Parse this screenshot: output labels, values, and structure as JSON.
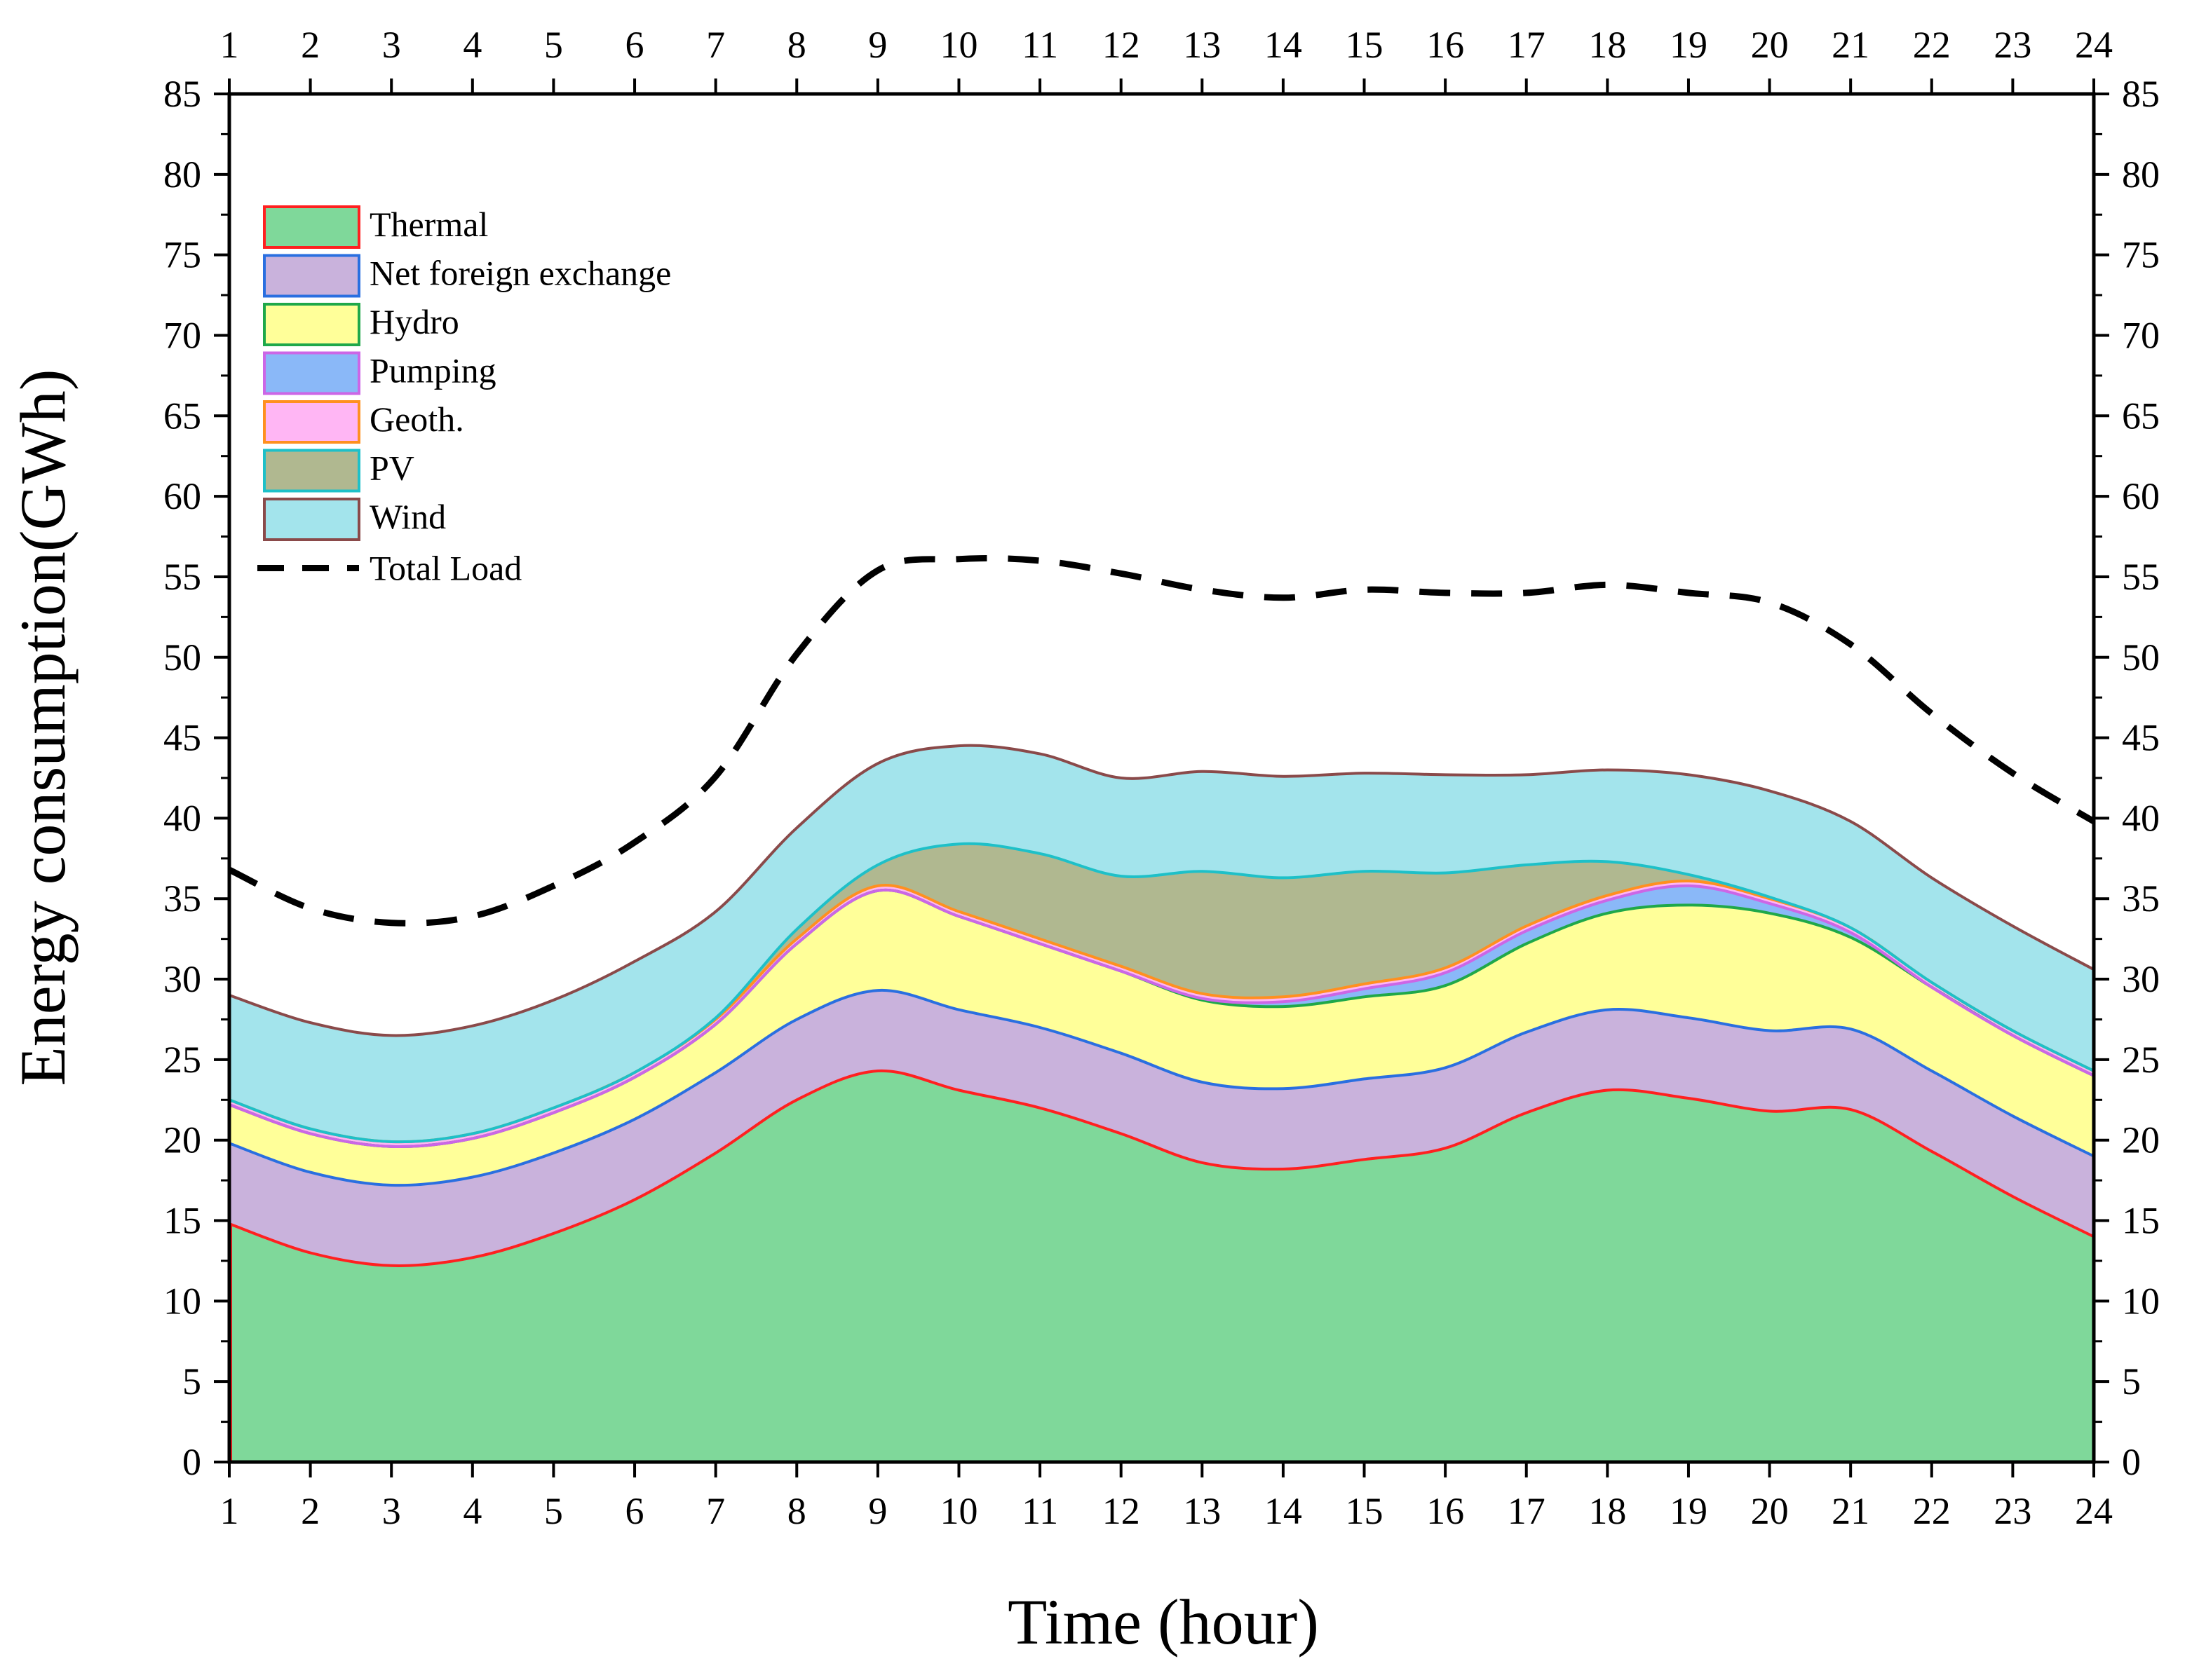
{
  "chart_data": {
    "type": "area",
    "stacked": true,
    "xlabel": "Time (hour)",
    "ylabel": "Energy consumption(GWh)",
    "x": [
      1,
      2,
      3,
      4,
      5,
      6,
      7,
      8,
      9,
      10,
      11,
      12,
      13,
      14,
      15,
      16,
      17,
      18,
      19,
      20,
      21,
      22,
      23,
      24
    ],
    "xlim": [
      1,
      24
    ],
    "ylim": [
      0,
      85
    ],
    "y_ticks": [
      0,
      5,
      10,
      15,
      20,
      25,
      30,
      35,
      40,
      45,
      50,
      55,
      60,
      65,
      70,
      75,
      80,
      85
    ],
    "x_ticks": [
      1,
      2,
      3,
      4,
      5,
      6,
      7,
      8,
      9,
      10,
      11,
      12,
      13,
      14,
      15,
      16,
      17,
      18,
      19,
      20,
      21,
      22,
      23,
      24
    ],
    "legend_position": "top-left",
    "series": [
      {
        "name": "Thermal",
        "fill": "#7fd89a",
        "stroke": "#ff2020",
        "values": [
          14.8,
          13.0,
          12.2,
          12.7,
          14.2,
          16.3,
          19.2,
          22.5,
          24.3,
          23.1,
          22.0,
          20.4,
          18.6,
          18.2,
          18.8,
          19.5,
          21.7,
          23.1,
          22.6,
          21.8,
          21.9,
          19.3,
          16.5,
          14.0
        ]
      },
      {
        "name": "Net foreign exchange",
        "fill": "#c9b2dc",
        "stroke": "#2a6fe0",
        "values": [
          5.0,
          5.0,
          5.0,
          5.0,
          5.0,
          5.0,
          5.0,
          5.0,
          5.0,
          5.0,
          5.0,
          5.0,
          5.0,
          5.0,
          5.0,
          5.0,
          5.0,
          5.0,
          5.0,
          5.0,
          5.0,
          5.0,
          5.0,
          5.0
        ]
      },
      {
        "name": "Hydro",
        "fill": "#ffff99",
        "stroke": "#1fa84a",
        "values": [
          2.4,
          2.4,
          2.4,
          2.4,
          2.5,
          2.6,
          3.0,
          4.7,
          6.2,
          5.8,
          5.2,
          5.1,
          5.1,
          5.1,
          5.1,
          5.1,
          5.5,
          6.0,
          7.0,
          7.3,
          5.7,
          5.2,
          5.0,
          5.0
        ]
      },
      {
        "name": "Pumping",
        "fill": "#8ab8f8",
        "stroke": "#cc66e6",
        "values": [
          0.0,
          0.0,
          0.0,
          0.0,
          0.0,
          0.0,
          0.0,
          0.0,
          0.0,
          0.0,
          0.0,
          0.0,
          0.1,
          0.3,
          0.5,
          0.8,
          0.8,
          0.8,
          1.2,
          0.6,
          0.3,
          0.0,
          0.0,
          0.0
        ]
      },
      {
        "name": "Geoth.",
        "fill": "#ffb6f4",
        "stroke": "#ff9020",
        "values": [
          0.3,
          0.3,
          0.3,
          0.3,
          0.3,
          0.3,
          0.3,
          0.3,
          0.3,
          0.3,
          0.3,
          0.3,
          0.3,
          0.3,
          0.3,
          0.3,
          0.3,
          0.3,
          0.3,
          0.3,
          0.3,
          0.3,
          0.3,
          0.3
        ]
      },
      {
        "name": "PV",
        "fill": "#b0b890",
        "stroke": "#1ec0c8",
        "values": [
          0.0,
          0.0,
          0.0,
          0.0,
          0.0,
          0.0,
          0.1,
          0.6,
          1.3,
          4.2,
          5.3,
          5.6,
          7.6,
          7.4,
          7.0,
          5.9,
          3.8,
          2.1,
          0.4,
          0.1,
          0.0,
          0.0,
          0.0,
          0.0
        ]
      },
      {
        "name": "Wind",
        "fill": "#a3e4ec",
        "stroke": "#8a4a4a",
        "values": [
          6.5,
          6.6,
          6.6,
          6.7,
          6.7,
          6.9,
          6.6,
          6.3,
          6.3,
          6.1,
          6.2,
          6.1,
          6.2,
          6.3,
          6.1,
          6.1,
          5.6,
          5.7,
          6.2,
          6.6,
          6.6,
          6.5,
          6.5,
          6.3
        ]
      }
    ],
    "load_line": {
      "name": "Total Load",
      "stroke": "#000000",
      "dash": "dashed",
      "values": [
        36.8,
        34.4,
        33.5,
        33.9,
        35.8,
        38.5,
        42.6,
        50.2,
        55.4,
        56.1,
        56.0,
        55.2,
        54.2,
        53.7,
        54.2,
        54.0,
        54.0,
        54.5,
        54.0,
        53.4,
        50.8,
        46.5,
        42.8,
        39.8
      ]
    }
  }
}
